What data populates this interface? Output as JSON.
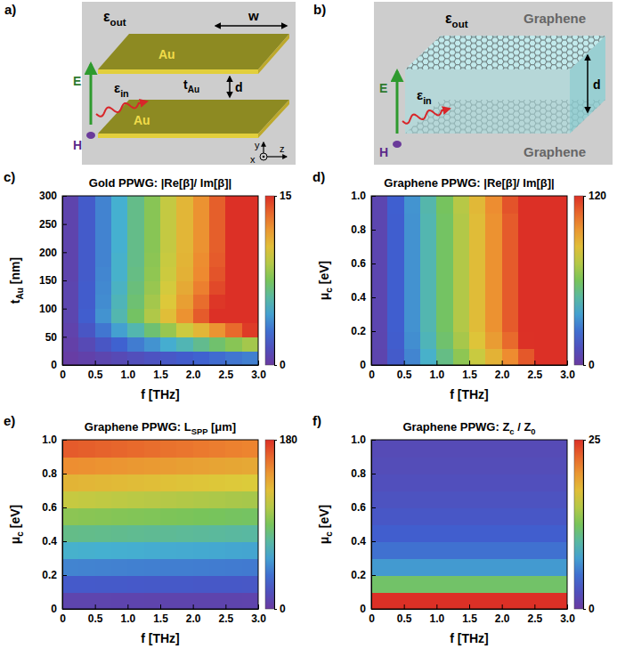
{
  "diagrams": [
    {
      "panel": "a)",
      "eps_out": [
        "ε",
        "out"
      ],
      "eps_in": [
        "ε",
        "in"
      ],
      "width": "w",
      "metal": [
        "Au",
        "Au"
      ],
      "thickness": [
        "t",
        "Au"
      ],
      "gap": "d",
      "field_e": "E",
      "field_h": "H",
      "axes": [
        "x",
        "y",
        "z"
      ]
    },
    {
      "panel": "b)",
      "eps_out": [
        "ε",
        "out"
      ],
      "eps_in": [
        "ε",
        "in"
      ],
      "sheets": [
        "Graphene",
        "Graphene"
      ],
      "gap": "d",
      "field_e": "E",
      "field_h": "H"
    }
  ],
  "chart_data": [
    {
      "type": "heatmap",
      "panel": "c)",
      "title": "Gold PPWG: |Re[β]/ Im[β]|",
      "x_label": "f [THz]",
      "y_label": [
        "t",
        "Au",
        " [nm]"
      ],
      "x": [
        0.125,
        0.375,
        0.625,
        0.875,
        1.125,
        1.375,
        1.625,
        1.875,
        2.125,
        2.375,
        2.625,
        2.875
      ],
      "y": [
        12.5,
        37.5,
        62.5,
        87.5,
        112.5,
        137.5,
        162.5,
        187.5,
        212.5,
        237.5,
        262.5,
        287.5
      ],
      "values": [
        [
          0.2,
          0.5,
          0.8,
          1.1,
          1.4,
          1.7,
          2.0,
          2.3,
          2.6,
          2.9,
          3.2,
          3.5
        ],
        [
          0.4,
          1.1,
          1.9,
          2.6,
          3.4,
          4.1,
          4.9,
          5.6,
          6.4,
          7.1,
          7.9,
          8.6
        ],
        [
          0.6,
          1.9,
          3.2,
          4.5,
          5.7,
          7.0,
          8.3,
          9.6,
          10.8,
          12.1,
          13.4,
          14.7
        ],
        [
          0.8,
          2.4,
          4.1,
          5.7,
          7.3,
          8.9,
          10.5,
          12.2,
          13.8,
          15,
          15,
          15
        ],
        [
          0.8,
          2.3,
          3.9,
          5.5,
          7.0,
          8.6,
          10.1,
          11.7,
          13.3,
          14.8,
          15,
          15
        ],
        [
          0.8,
          2.3,
          3.8,
          5.3,
          6.8,
          8.3,
          9.8,
          11.3,
          12.8,
          14.3,
          15,
          15
        ],
        [
          0.7,
          2.2,
          3.7,
          5.1,
          6.6,
          8.1,
          9.6,
          11.0,
          12.5,
          14.0,
          15,
          15
        ],
        [
          0.7,
          2.2,
          3.6,
          5.1,
          6.5,
          8.0,
          9.5,
          10.9,
          12.4,
          13.8,
          15,
          15
        ],
        [
          0.7,
          2.2,
          3.6,
          5.0,
          6.5,
          7.9,
          9.4,
          10.8,
          12.2,
          13.7,
          15,
          15
        ],
        [
          0.7,
          2.2,
          3.6,
          5.0,
          6.5,
          7.9,
          9.4,
          10.8,
          12.2,
          13.7,
          15,
          15
        ],
        [
          0.7,
          2.2,
          3.6,
          5.0,
          6.5,
          7.9,
          9.4,
          10.8,
          12.2,
          13.7,
          15,
          15
        ],
        [
          0.7,
          2.2,
          3.6,
          5.0,
          6.5,
          7.9,
          9.4,
          10.8,
          12.2,
          13.7,
          15,
          15
        ]
      ],
      "xlim": [
        0,
        3
      ],
      "xticks": [
        0,
        0.5,
        {
          "value": 1,
          "label": "1.0"
        },
        1.5,
        {
          "value": 2,
          "label": "2.0"
        },
        2.5,
        {
          "value": 3,
          "label": "3.0"
        }
      ],
      "ylim": [
        0,
        300
      ],
      "yticks": [
        0,
        50,
        100,
        150,
        200,
        250,
        300
      ],
      "colorbar": {
        "range": [
          0,
          15
        ],
        "ticks": [
          0,
          15
        ]
      }
    },
    {
      "type": "heatmap",
      "panel": "d)",
      "title": "Graphene PPWG: |Re[β]/ Im[β]|",
      "x_label": "f [THz]",
      "y_label": [
        "μ",
        "c",
        " [eV]"
      ],
      "x": [
        0.125,
        0.375,
        0.625,
        0.875,
        1.125,
        1.375,
        1.625,
        1.875,
        2.125,
        2.375,
        2.625,
        2.875
      ],
      "y": [
        0.05,
        0.15,
        0.25,
        0.35,
        0.45,
        0.55,
        0.65,
        0.75,
        0.85,
        0.95
      ],
      "values": [
        [
          5.9,
          17.6,
          29.3,
          41.0,
          52.7,
          64.4,
          76.1,
          87.8,
          99.5,
          111.2,
          120,
          120
        ],
        [
          6.3,
          18.9,
          31.5,
          44.1,
          56.7,
          69.4,
          82.0,
          94.6,
          107.2,
          119.8,
          120,
          120
        ],
        [
          6.5,
          19.5,
          32.5,
          45.5,
          58.5,
          71.5,
          84.5,
          97.5,
          110.5,
          120,
          120,
          120
        ],
        [
          6.5,
          19.5,
          32.5,
          45.5,
          58.5,
          71.5,
          84.5,
          97.5,
          110.5,
          120,
          120,
          120
        ],
        [
          6.5,
          19.5,
          32.5,
          45.5,
          58.5,
          71.5,
          84.5,
          97.5,
          110.5,
          120,
          120,
          120
        ],
        [
          6.5,
          19.5,
          32.5,
          45.5,
          58.5,
          71.5,
          84.5,
          97.5,
          110.5,
          120,
          120,
          120
        ],
        [
          6.5,
          19.5,
          32.5,
          45.5,
          58.5,
          71.5,
          84.5,
          97.5,
          110.5,
          120,
          120,
          120
        ],
        [
          6.5,
          19.5,
          32.5,
          45.5,
          58.5,
          71.5,
          84.5,
          97.5,
          110.5,
          120,
          120,
          120
        ],
        [
          6.5,
          19.5,
          32.5,
          45.5,
          58.5,
          71.5,
          84.5,
          97.5,
          110.5,
          120,
          120,
          120
        ],
        [
          6.6,
          19.8,
          33.0,
          46.2,
          59.4,
          72.6,
          85.8,
          99.0,
          112.2,
          120,
          120,
          120
        ]
      ],
      "xlim": [
        0,
        3
      ],
      "xticks": [
        0,
        0.5,
        {
          "value": 1,
          "label": "1.0"
        },
        1.5,
        {
          "value": 2,
          "label": "2.0"
        },
        2.5,
        {
          "value": 3,
          "label": "3.0"
        }
      ],
      "ylim": [
        0,
        1
      ],
      "yticks": [
        0,
        0.2,
        0.4,
        0.6,
        0.8,
        {
          "value": 1,
          "label": "1.0"
        }
      ],
      "colorbar": {
        "range": [
          0,
          120
        ],
        "ticks": [
          0,
          120
        ]
      }
    },
    {
      "type": "heatmap",
      "panel": "e)",
      "title": [
        "Graphene PPWG: L",
        "SPP",
        " [μm]"
      ],
      "x_label": "f [THz]",
      "y_label": [
        "μ",
        "c",
        " [eV]"
      ],
      "x": [
        0.125,
        0.375,
        0.625,
        0.875,
        1.125,
        1.375,
        1.625,
        1.875,
        2.125,
        2.375,
        2.625,
        2.875
      ],
      "y": [
        0.05,
        0.15,
        0.25,
        0.35,
        0.45,
        0.55,
        0.65,
        0.75,
        0.85,
        0.95
      ],
      "values": [
        [
          8.7,
          8.7,
          8.6,
          8.5,
          8.5,
          8.4,
          8.3,
          8.3,
          8.2,
          8.1,
          8.1,
          8.0
        ],
        [
          26.1,
          26.0,
          25.8,
          25.6,
          25.4,
          25.2,
          25.0,
          24.8,
          24.6,
          24.4,
          24.2,
          24.0
        ],
        [
          43.6,
          43.3,
          42.9,
          42.6,
          42.3,
          42.0,
          41.6,
          41.3,
          41.0,
          40.6,
          40.3,
          40.0
        ],
        [
          61.0,
          60.6,
          60.1,
          59.7,
          59.2,
          58.7,
          58.3,
          57.8,
          57.3,
          56.9,
          56.4,
          56.0
        ],
        [
          78.4,
          77.9,
          77.3,
          76.7,
          76.1,
          75.5,
          74.9,
          74.3,
          73.7,
          73.2,
          72.5,
          72.0
        ],
        [
          95.9,
          95.2,
          94.4,
          93.7,
          93.0,
          92.3,
          91.5,
          90.9,
          90.1,
          89.4,
          88.6,
          88.0
        ],
        [
          113.3,
          112.5,
          111.6,
          110.8,
          109.9,
          109.1,
          108.2,
          107.4,
          106.5,
          105.7,
          104.8,
          104.0
        ],
        [
          130.7,
          129.8,
          128.8,
          127.8,
          126.8,
          125.9,
          124.8,
          123.9,
          122.9,
          121.9,
          120.9,
          120.0
        ],
        [
          148.2,
          147.1,
          145.9,
          144.9,
          143.7,
          142.6,
          141.5,
          140.4,
          139.2,
          138.2,
          137.0,
          136.0
        ],
        [
          165.6,
          164.4,
          163.1,
          161.9,
          160.6,
          159.4,
          158.1,
          156.9,
          155.6,
          154.4,
          153.1,
          152.0
        ]
      ],
      "xlim": [
        0,
        3
      ],
      "xticks": [
        0,
        0.5,
        {
          "value": 1,
          "label": "1.0"
        },
        1.5,
        {
          "value": 2,
          "label": "2.0"
        },
        2.5,
        {
          "value": 3,
          "label": "3.0"
        }
      ],
      "ylim": [
        0,
        1
      ],
      "yticks": [
        0,
        0.2,
        0.4,
        0.6,
        0.8,
        {
          "value": 1,
          "label": "1.0"
        }
      ],
      "colorbar": {
        "range": [
          0,
          180
        ],
        "ticks": [
          0,
          180
        ]
      }
    },
    {
      "type": "heatmap",
      "panel": "f)",
      "title": [
        "Graphene PPWG: Z",
        "c",
        " / Z",
        "0"
      ],
      "x_label": "f [THz]",
      "y_label": [
        "μ",
        "c",
        " [eV]"
      ],
      "x": [
        0.125,
        0.375,
        0.625,
        0.875,
        1.125,
        1.375,
        1.625,
        1.875,
        2.125,
        2.375,
        2.625,
        2.875
      ],
      "y": [
        0.05,
        0.15,
        0.25,
        0.35,
        0.45,
        0.55,
        0.65,
        0.75,
        0.85,
        0.95
      ],
      "values": [
        [
          25,
          25,
          25,
          25,
          25,
          25,
          25,
          25,
          25,
          25,
          25,
          25
        ],
        [
          12.0,
          12.0,
          12.0,
          12.0,
          12.0,
          12.0,
          12.0,
          12.0,
          12.0,
          12.0,
          12.0,
          12.0
        ],
        [
          7.2,
          7.2,
          7.2,
          7.2,
          7.2,
          7.2,
          7.2,
          7.2,
          7.2,
          7.2,
          7.2,
          7.2
        ],
        [
          5.1,
          5.1,
          5.1,
          5.1,
          5.1,
          5.1,
          5.1,
          5.1,
          5.1,
          5.1,
          5.1,
          5.1
        ],
        [
          4.0,
          4.0,
          4.0,
          4.0,
          4.0,
          4.0,
          4.0,
          4.0,
          4.0,
          4.0,
          4.0,
          4.0
        ],
        [
          3.3,
          3.3,
          3.3,
          3.3,
          3.3,
          3.3,
          3.3,
          3.3,
          3.3,
          3.3,
          3.3,
          3.3
        ],
        [
          2.8,
          2.8,
          2.8,
          2.8,
          2.8,
          2.8,
          2.8,
          2.8,
          2.8,
          2.8,
          2.8,
          2.8
        ],
        [
          2.4,
          2.4,
          2.4,
          2.4,
          2.4,
          2.4,
          2.4,
          2.4,
          2.4,
          2.4,
          2.4,
          2.4
        ],
        [
          2.1,
          2.1,
          2.1,
          2.1,
          2.1,
          2.1,
          2.1,
          2.1,
          2.1,
          2.1,
          2.1,
          2.1
        ],
        [
          1.9,
          1.9,
          1.9,
          1.9,
          1.9,
          1.9,
          1.9,
          1.9,
          1.9,
          1.9,
          1.9,
          1.9
        ]
      ],
      "xlim": [
        0,
        3
      ],
      "xticks": [
        0,
        0.5,
        {
          "value": 1,
          "label": "1.0"
        },
        1.5,
        {
          "value": 2,
          "label": "2.0"
        },
        2.5,
        {
          "value": 3,
          "label": "3.0"
        }
      ],
      "ylim": [
        0,
        1
      ],
      "yticks": [
        0,
        0.2,
        0.4,
        0.6,
        0.8,
        {
          "value": 1,
          "label": "1.0"
        }
      ],
      "colorbar": {
        "range": [
          0,
          25
        ],
        "ticks": [
          0,
          25
        ]
      }
    }
  ]
}
